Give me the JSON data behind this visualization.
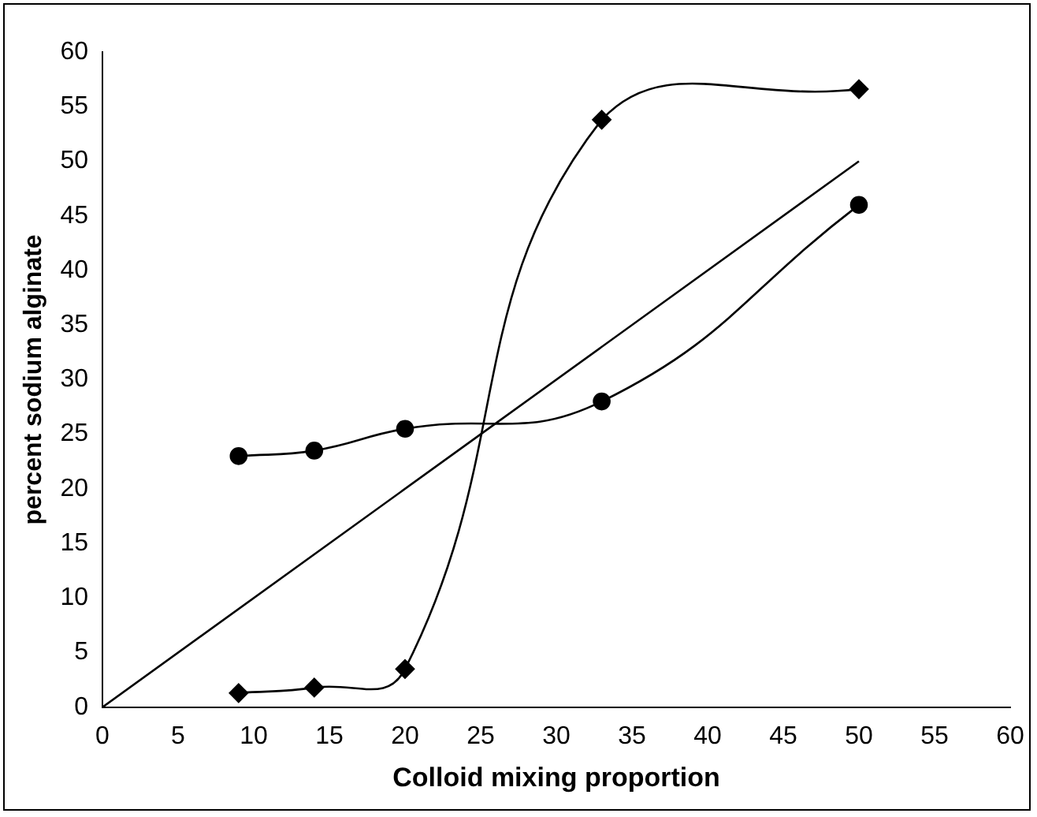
{
  "chart_data": {
    "type": "line",
    "xlabel": "Colloid mixing proportion",
    "ylabel": "percent sodium alginate",
    "xlim": [
      0,
      60
    ],
    "xticks": [
      0,
      5,
      10,
      15,
      20,
      25,
      30,
      35,
      40,
      45,
      50,
      55,
      60
    ],
    "ylim": [
      0,
      60
    ],
    "yticks": [
      0,
      5,
      10,
      15,
      20,
      25,
      30,
      35,
      40,
      45,
      50,
      55,
      60
    ],
    "grid": false,
    "legend": false,
    "series": [
      {
        "color": "#000000",
        "marker": "circle",
        "x": [
          9,
          14,
          20,
          33,
          50
        ],
        "values": [
          23,
          23.5,
          25.5,
          28,
          46
        ]
      },
      {
        "color": "#000000",
        "marker": "diamond",
        "x": [
          9,
          14,
          20,
          33,
          50
        ],
        "values": [
          1.3,
          1.8,
          3.5,
          53.8,
          56.6
        ]
      },
      {
        "color": "#000000",
        "marker": "none",
        "x": [
          0,
          50
        ],
        "values": [
          0,
          50
        ]
      }
    ]
  }
}
